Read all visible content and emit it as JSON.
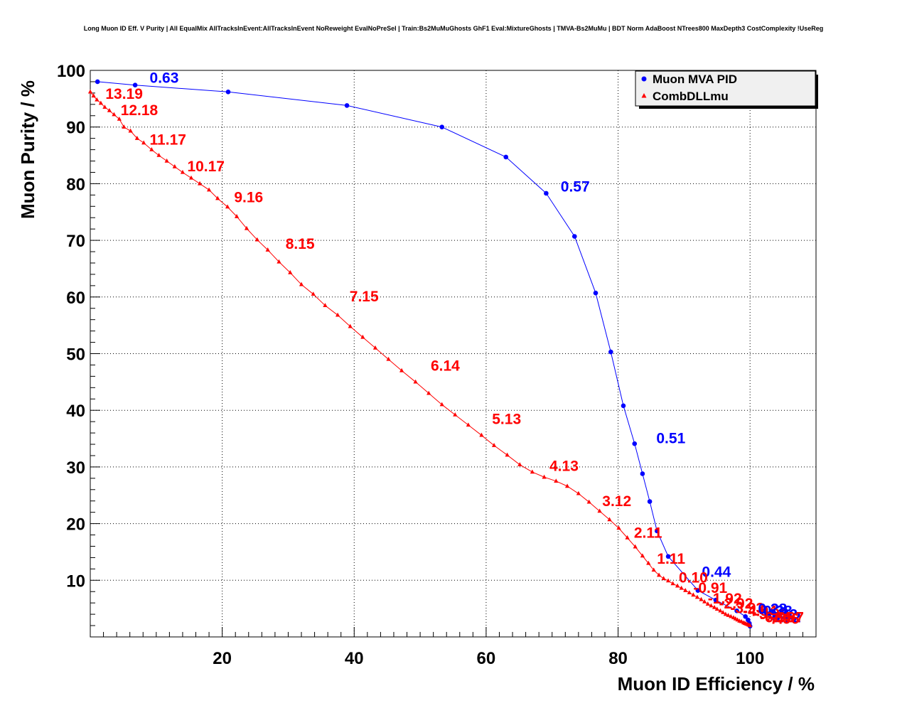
{
  "chart_data": {
    "type": "line",
    "title": "Long Muon ID Eff. V Purity | All EqualMix AllTracksInEvent:AllTracksInEvent NoReweight EvalNoPreSel | Train:Bs2MuMuGhosts GhF1 Eval:MixtureGhosts | TMVA-Bs2MuMu | BDT Norm AdaBoost NTrees800 MaxDepth3 CostComplexity !UseReg",
    "xlabel": "Muon ID Efficiency / %",
    "ylabel": "Muon Purity / %",
    "xlim": [
      0,
      110
    ],
    "ylim": [
      0,
      100
    ],
    "xticks": [
      20,
      40,
      60,
      80,
      100
    ],
    "yticks": [
      10,
      20,
      30,
      40,
      50,
      60,
      70,
      80,
      90,
      100
    ],
    "grid": true,
    "legend": "top-right",
    "series": [
      {
        "name": "Muon MVA PID",
        "color": "#0000ff",
        "marker": "circle",
        "x": [
          1.1,
          6.8,
          20.9,
          38.9,
          53.3,
          63.0,
          69.1,
          73.4,
          76.6,
          78.9,
          80.8,
          82.5,
          83.7,
          84.8,
          85.9,
          87.6,
          92.1,
          94.8,
          98.0,
          99.3,
          99.7,
          99.9,
          100.0
        ],
        "y": [
          98.0,
          97.4,
          96.2,
          93.8,
          90.0,
          84.7,
          78.3,
          70.7,
          60.7,
          50.3,
          40.8,
          34.1,
          28.8,
          23.9,
          18.7,
          14.2,
          8.2,
          6.5,
          4.6,
          3.6,
          3.0,
          2.4,
          1.9
        ]
      },
      {
        "name": "CombDLLmu",
        "color": "#ff0000",
        "marker": "triangle",
        "x": [
          0.0,
          0.5,
          1.0,
          1.6,
          2.2,
          2.9,
          3.6,
          4.4,
          5.1,
          6.1,
          7.1,
          8.1,
          9.3,
          10.4,
          11.6,
          12.8,
          14.0,
          15.3,
          16.6,
          18.0,
          19.3,
          20.8,
          22.2,
          23.7,
          25.3,
          26.9,
          28.6,
          30.3,
          32.0,
          33.8,
          35.6,
          37.5,
          39.4,
          41.3,
          43.2,
          45.2,
          47.2,
          49.3,
          51.3,
          53.3,
          55.3,
          57.3,
          59.3,
          61.2,
          63.2,
          65.1,
          67.0,
          68.8,
          70.6,
          72.3,
          74.0,
          75.6,
          77.2,
          78.7,
          80.1,
          81.4,
          82.6,
          83.7,
          84.6,
          85.4,
          86.2,
          86.9,
          87.6,
          88.3,
          89.0,
          89.6,
          90.2,
          90.8,
          91.4,
          92.0,
          92.6,
          93.1,
          93.6,
          94.1,
          94.6,
          95.0,
          95.5,
          95.9,
          96.3,
          96.7,
          97.1,
          97.5,
          97.8,
          98.1,
          98.4,
          98.7,
          99.0,
          99.2,
          99.4,
          99.6,
          99.8,
          100.0
        ],
        "y": [
          96.2,
          95.5,
          94.8,
          94.2,
          93.5,
          92.9,
          92.2,
          91.4,
          90.0,
          89.3,
          88.0,
          87.2,
          86.0,
          85.0,
          84.0,
          83.0,
          82.0,
          81.0,
          80.0,
          78.9,
          77.4,
          75.9,
          74.2,
          72.1,
          70.1,
          68.3,
          66.2,
          64.3,
          62.2,
          60.5,
          58.5,
          56.8,
          54.8,
          52.9,
          51.0,
          49.0,
          47.0,
          45.0,
          43.0,
          41.0,
          39.2,
          37.4,
          35.6,
          33.8,
          32.1,
          30.4,
          29.1,
          28.2,
          27.5,
          26.6,
          25.3,
          23.8,
          22.2,
          20.7,
          19.2,
          17.5,
          15.9,
          14.3,
          13.0,
          11.8,
          10.9,
          10.3,
          9.9,
          9.4,
          9.0,
          8.6,
          8.2,
          7.8,
          7.4,
          7.0,
          6.6,
          6.2,
          5.8,
          5.5,
          5.2,
          4.9,
          4.6,
          4.3,
          4.0,
          3.8,
          3.6,
          3.4,
          3.2,
          3.0,
          2.8,
          2.7,
          2.5,
          2.4,
          2.3,
          2.2,
          2.1,
          2.0
        ]
      }
    ],
    "annotations": [
      {
        "text": "0.63",
        "series": "Muon MVA PID",
        "x": 9.0,
        "y": 97.8
      },
      {
        "text": "0.57",
        "series": "Muon MVA PID",
        "x": 71.3,
        "y": 78.6
      },
      {
        "text": "0.51",
        "series": "Muon MVA PID",
        "x": 85.8,
        "y": 34.2
      },
      {
        "text": "0.44",
        "series": "Muon MVA PID",
        "x": 92.7,
        "y": 10.6
      },
      {
        "text": "13.19",
        "series": "CombDLLmu",
        "x": 2.3,
        "y": 95.0
      },
      {
        "text": "12.18",
        "series": "CombDLLmu",
        "x": 4.6,
        "y": 92.1
      },
      {
        "text": "11.17",
        "series": "CombDLLmu",
        "x": 9.0,
        "y": 86.9
      },
      {
        "text": "10.17",
        "series": "CombDLLmu",
        "x": 14.7,
        "y": 82.2
      },
      {
        "text": "9.16",
        "series": "CombDLLmu",
        "x": 21.8,
        "y": 76.7
      },
      {
        "text": "8.15",
        "series": "CombDLLmu",
        "x": 29.6,
        "y": 68.5
      },
      {
        "text": "7.15",
        "series": "CombDLLmu",
        "x": 39.3,
        "y": 59.2
      },
      {
        "text": "6.14",
        "series": "CombDLLmu",
        "x": 51.6,
        "y": 47.0
      },
      {
        "text": "5.13",
        "series": "CombDLLmu",
        "x": 60.9,
        "y": 37.6
      },
      {
        "text": "4.13",
        "series": "CombDLLmu",
        "x": 69.6,
        "y": 29.3
      },
      {
        "text": "3.12",
        "series": "CombDLLmu",
        "x": 77.6,
        "y": 23.1
      },
      {
        "text": "2.11",
        "series": "CombDLLmu",
        "x": 82.4,
        "y": 17.5
      },
      {
        "text": "1.11",
        "series": "CombDLLmu",
        "x": 85.9,
        "y": 12.9
      },
      {
        "text": "0.10",
        "series": "CombDLLmu",
        "x": 89.2,
        "y": 9.6
      },
      {
        "text": "-0.91",
        "series": "CombDLLmu",
        "x": 91.4,
        "y": 7.8
      },
      {
        "text": "-1.92",
        "series": "CombDLLmu",
        "x": 93.6,
        "y": 5.9
      },
      {
        "text": "-2.92",
        "series": "CombDLLmu",
        "x": 95.3,
        "y": 5.0
      },
      {
        "text": "-3.93",
        "series": "CombDLLmu",
        "x": 97.0,
        "y": 4.2
      },
      {
        "text": "-4.94",
        "series": "CombDLLmu",
        "x": 98.9,
        "y": 3.7
      },
      {
        "text": "-5.95",
        "series": "CombDLLmu",
        "x": 100.6,
        "y": 3.2
      },
      {
        "text": "0.28",
        "series": "Muon MVA PID",
        "x": 101.2,
        "y": 4.1
      },
      {
        "text": "0.38",
        "series": "Muon MVA PID",
        "x": 102.0,
        "y": 3.7
      },
      {
        "text": "0.32",
        "series": "Muon MVA PID",
        "x": 102.8,
        "y": 3.1
      },
      {
        "text": "0.22",
        "series": "Muon MVA PID",
        "x": 103.3,
        "y": 2.6
      },
      {
        "text": "-6.95",
        "series": "CombDLLmu",
        "x": 101.5,
        "y": 2.6
      },
      {
        "text": "-7.96",
        "series": "CombDLLmu",
        "x": 102.3,
        "y": 2.3
      },
      {
        "text": "-8.97",
        "series": "CombDLLmu",
        "x": 103.0,
        "y": 2.6
      }
    ]
  }
}
